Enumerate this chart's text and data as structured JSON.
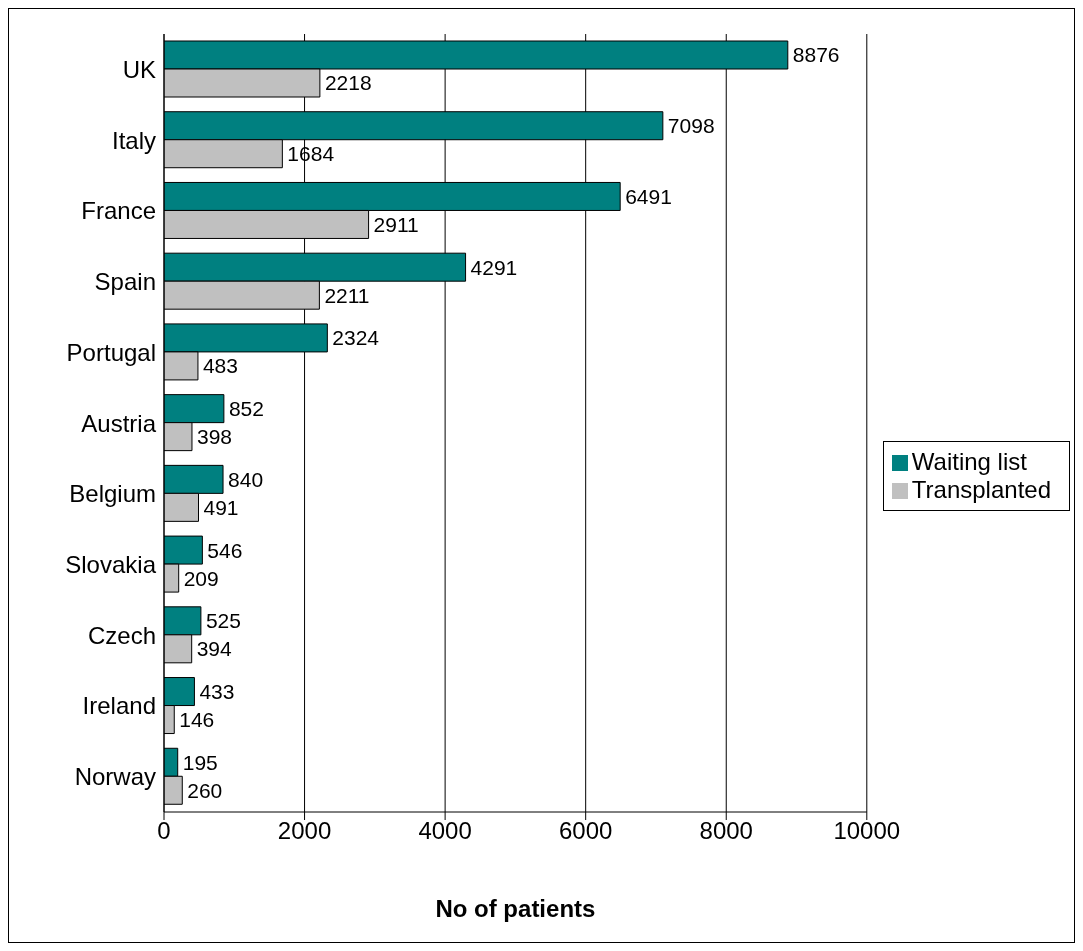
{
  "chart_data": {
    "type": "bar",
    "orientation": "horizontal",
    "xlabel": "No of patients",
    "categories": [
      "UK",
      "Italy",
      "France",
      "Spain",
      "Portugal",
      "Austria",
      "Belgium",
      "Slovakia",
      "Czech",
      "Ireland",
      "Norway"
    ],
    "series": [
      {
        "name": "Waiting list",
        "color": "#008080",
        "values": [
          8876,
          7098,
          6491,
          4291,
          2324,
          852,
          840,
          546,
          525,
          433,
          195
        ]
      },
      {
        "name": "Transplanted",
        "color": "#c0c0c0",
        "values": [
          2218,
          1684,
          2911,
          2211,
          483,
          398,
          491,
          209,
          394,
          146,
          260
        ]
      }
    ],
    "xlim": [
      0,
      10000
    ],
    "xticks": [
      0,
      2000,
      4000,
      6000,
      8000,
      10000
    ],
    "grid": "x",
    "legend": "right",
    "data_labels": true
  }
}
